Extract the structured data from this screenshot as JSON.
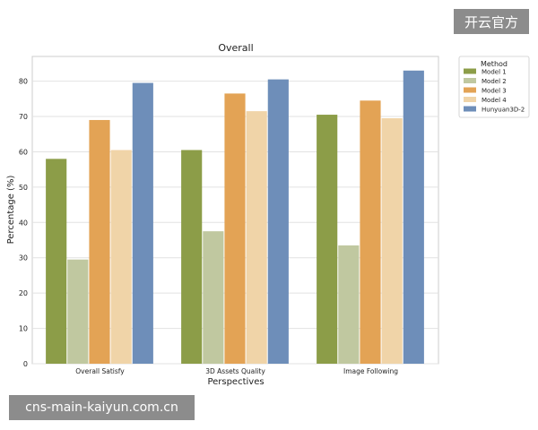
{
  "watermark_top": "开云官方",
  "watermark_bottom": "cns-main-kaiyun.com.cn",
  "chart_data": {
    "type": "bar",
    "title": "Overall",
    "xlabel": "Perspectives",
    "ylabel": "Percentage (%)",
    "ylim": [
      0,
      87
    ],
    "yticks": [
      0,
      10,
      20,
      30,
      40,
      50,
      60,
      70,
      80
    ],
    "grid": true,
    "categories": [
      "Overall Satisfy",
      "3D Assets Quality",
      "Image Following"
    ],
    "legend": {
      "title": "Method",
      "placement": "outside-right-top"
    },
    "series": [
      {
        "name": "Model 1",
        "color": "#8c9d48",
        "values": [
          58,
          60.5,
          70.5
        ]
      },
      {
        "name": "Model 2",
        "color": "#c0c8a0",
        "values": [
          29.5,
          37.5,
          33.5
        ]
      },
      {
        "name": "Model 3",
        "color": "#e3a355",
        "values": [
          69,
          76.5,
          74.5
        ]
      },
      {
        "name": "Model 4",
        "color": "#f0d4a8",
        "values": [
          60.5,
          71.5,
          69.5
        ]
      },
      {
        "name": "Hunyuan3D-2",
        "color": "#6e8eb9",
        "values": [
          79.5,
          80.5,
          83
        ]
      }
    ]
  }
}
